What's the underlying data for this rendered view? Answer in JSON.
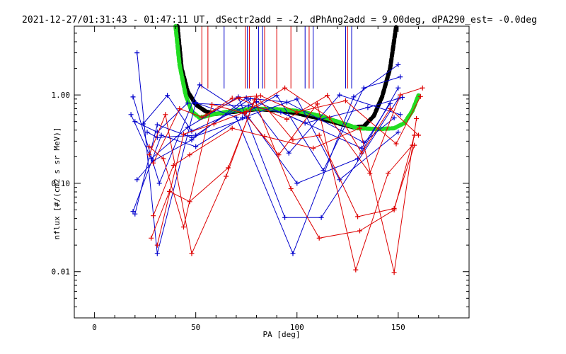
{
  "chart_data": {
    "type": "line",
    "title": "2021-12-27/01:31:43 - 01:47:11 UT, dSectr2add = -2, dPhAng2add = 9.00deg, dPA290_est=  -0.0deg",
    "xlabel": "PA [deg]",
    "ylabel": "nflux [#/(cm2 s sr MeV)]",
    "xlim": [
      -10,
      185
    ],
    "ylim": [
      0.003,
      6
    ],
    "yscale": "log",
    "grid": false,
    "legend": "none",
    "x_ticks": [
      {
        "value": 0,
        "label": "0"
      },
      {
        "value": 50,
        "label": "50"
      },
      {
        "value": 100,
        "label": "100"
      },
      {
        "value": 150,
        "label": "150"
      }
    ],
    "y_ticks": [
      {
        "value": 0.01,
        "label": "0.01"
      },
      {
        "value": 0.1,
        "label": "0.10"
      },
      {
        "value": 1,
        "label": "1.00"
      }
    ],
    "colors": {
      "blue": "#0000cc",
      "red": "#dd0000",
      "black_fit": "#000000",
      "green_fit": "#22dd22"
    },
    "vertical_markers": {
      "red": [
        53,
        56,
        74.5,
        76.5,
        84,
        90,
        97,
        106,
        125
      ],
      "blue": [
        64,
        75.5,
        81,
        83,
        104,
        108,
        124,
        127
      ]
    },
    "series": [
      {
        "color": "blue",
        "points": [
          [
            20,
            0.045
          ],
          [
            31,
            0.46
          ],
          [
            48,
            0.33
          ],
          [
            76,
            0.56
          ],
          [
            100,
            0.1
          ],
          [
            130,
            0.19
          ],
          [
            150,
            1.2
          ]
        ]
      },
      {
        "color": "blue",
        "points": [
          [
            21,
            0.11
          ],
          [
            29,
            0.18
          ],
          [
            48,
            0.31
          ],
          [
            75,
            0.93
          ],
          [
            96,
            0.22
          ],
          [
            121,
            1.0
          ],
          [
            151,
            0.6
          ]
        ]
      },
      {
        "color": "blue",
        "points": [
          [
            18,
            0.6
          ],
          [
            28,
            0.19
          ],
          [
            46,
            0.43
          ],
          [
            71,
            0.95
          ],
          [
            94,
            0.041
          ],
          [
            112,
            0.041
          ],
          [
            150,
            0.9
          ]
        ]
      },
      {
        "color": "blue",
        "points": [
          [
            19,
            0.95
          ],
          [
            32,
            0.1
          ],
          [
            52,
            1.3
          ],
          [
            74,
            0.61
          ],
          [
            90,
            0.99
          ],
          [
            113,
            0.14
          ],
          [
            133,
            1.2
          ],
          [
            151,
            1.6
          ]
        ]
      },
      {
        "color": "blue",
        "points": [
          [
            20,
            0.5
          ],
          [
            31,
            0.38
          ],
          [
            46,
            0.81
          ],
          [
            76,
            0.75
          ],
          [
            92,
            0.64
          ],
          [
            132,
            0.25
          ],
          [
            146,
            0.8
          ]
        ]
      },
      {
        "color": "blue",
        "points": [
          [
            21,
            3.0
          ],
          [
            31,
            0.016
          ],
          [
            50,
            0.82
          ],
          [
            70,
            0.56
          ],
          [
            98,
            0.016
          ],
          [
            128,
            0.95
          ],
          [
            150,
            2.2
          ]
        ]
      },
      {
        "color": "blue",
        "points": [
          [
            19,
            0.048
          ],
          [
            33,
            0.35
          ],
          [
            50,
            0.26
          ],
          [
            73,
            0.55
          ],
          [
            100,
            0.9
          ],
          [
            121,
            0.11
          ],
          [
            150,
            0.38
          ]
        ]
      },
      {
        "color": "blue",
        "points": [
          [
            26,
            0.38
          ],
          [
            31,
            0.33
          ],
          [
            50,
            0.35
          ],
          [
            77,
            0.91
          ],
          [
            95,
            0.83
          ],
          [
            133,
            0.29
          ],
          [
            148,
            0.55
          ]
        ]
      },
      {
        "color": "blue",
        "points": [
          [
            24,
            0.47
          ],
          [
            36,
            0.99
          ],
          [
            48,
            0.39
          ],
          [
            80,
            0.84
          ],
          [
            104,
            0.48
          ],
          [
            135,
            0.72
          ],
          [
            152,
            0.94
          ]
        ]
      },
      {
        "color": "red",
        "points": [
          [
            27,
            0.21
          ],
          [
            35,
            0.6
          ],
          [
            48,
            0.016
          ],
          [
            65,
            0.12
          ],
          [
            79,
            0.88
          ],
          [
            97,
            0.087
          ],
          [
            111,
            0.024
          ],
          [
            131,
            0.029
          ],
          [
            148,
            0.05
          ],
          [
            158,
            0.35
          ]
        ]
      },
      {
        "color": "red",
        "points": [
          [
            28,
            0.024
          ],
          [
            37,
            0.081
          ],
          [
            47,
            0.062
          ],
          [
            66,
            0.15
          ],
          [
            80,
            0.97
          ],
          [
            98,
            0.31
          ],
          [
            111,
            0.35
          ],
          [
            130,
            0.042
          ],
          [
            148,
            0.052
          ],
          [
            158,
            0.27
          ]
        ]
      },
      {
        "color": "red",
        "points": [
          [
            27,
            0.26
          ],
          [
            34,
            0.19
          ],
          [
            44,
            0.032
          ],
          [
            58,
            0.78
          ],
          [
            74,
            0.62
          ],
          [
            91,
            0.21
          ],
          [
            110,
            0.79
          ],
          [
            129,
            0.0105
          ],
          [
            145,
            0.13
          ],
          [
            157,
            0.27
          ]
        ]
      },
      {
        "color": "red",
        "points": [
          [
            29,
            0.043
          ],
          [
            39,
            0.16
          ],
          [
            47,
            0.21
          ],
          [
            68,
            0.42
          ],
          [
            84,
            0.34
          ],
          [
            108,
            0.25
          ],
          [
            131,
            0.42
          ],
          [
            148,
            0.0098
          ],
          [
            159,
            0.54
          ]
        ]
      },
      {
        "color": "red",
        "points": [
          [
            29,
            0.17
          ],
          [
            42,
            0.7
          ],
          [
            53,
            0.56
          ],
          [
            71,
            0.92
          ],
          [
            95,
            0.53
          ],
          [
            115,
            0.99
          ],
          [
            132,
            0.22
          ],
          [
            146,
            0.7
          ],
          [
            160,
            0.35
          ]
        ]
      },
      {
        "color": "red",
        "points": [
          [
            31,
            0.02
          ],
          [
            44,
            0.36
          ],
          [
            59,
            0.47
          ],
          [
            75,
            0.65
          ],
          [
            94,
            1.2
          ],
          [
            116,
            0.55
          ],
          [
            136,
            0.13
          ],
          [
            151,
            1.0
          ],
          [
            162,
            1.2
          ]
        ]
      },
      {
        "color": "red",
        "points": [
          [
            55,
            0.59
          ],
          [
            68,
            0.92
          ],
          [
            82,
            0.98
          ],
          [
            100,
            0.64
          ],
          [
            124,
            0.86
          ],
          [
            149,
            0.28
          ],
          [
            161,
            0.96
          ]
        ]
      }
    ],
    "fits": [
      {
        "color": "black_fit",
        "points": [
          [
            41,
            6.0
          ],
          [
            43,
            2.0
          ],
          [
            46,
            1.1
          ],
          [
            50,
            0.78
          ],
          [
            55,
            0.65
          ],
          [
            60,
            0.61
          ],
          [
            70,
            0.65
          ],
          [
            80,
            0.69
          ],
          [
            90,
            0.67
          ],
          [
            100,
            0.62
          ],
          [
            110,
            0.55
          ],
          [
            120,
            0.48
          ],
          [
            128,
            0.43
          ],
          [
            133,
            0.44
          ],
          [
            138,
            0.58
          ],
          [
            142,
            0.95
          ],
          [
            146,
            2.0
          ],
          [
            149,
            6.0
          ]
        ]
      },
      {
        "color": "green_fit",
        "points": [
          [
            40,
            6.0
          ],
          [
            42,
            2.2
          ],
          [
            45,
            1.0
          ],
          [
            48,
            0.65
          ],
          [
            52,
            0.55
          ],
          [
            58,
            0.6
          ],
          [
            68,
            0.66
          ],
          [
            78,
            0.7
          ],
          [
            90,
            0.69
          ],
          [
            100,
            0.66
          ],
          [
            110,
            0.59
          ],
          [
            120,
            0.5
          ],
          [
            130,
            0.42
          ],
          [
            140,
            0.41
          ],
          [
            148,
            0.42
          ],
          [
            153,
            0.48
          ],
          [
            157,
            0.66
          ],
          [
            160,
            0.99
          ]
        ]
      }
    ]
  }
}
